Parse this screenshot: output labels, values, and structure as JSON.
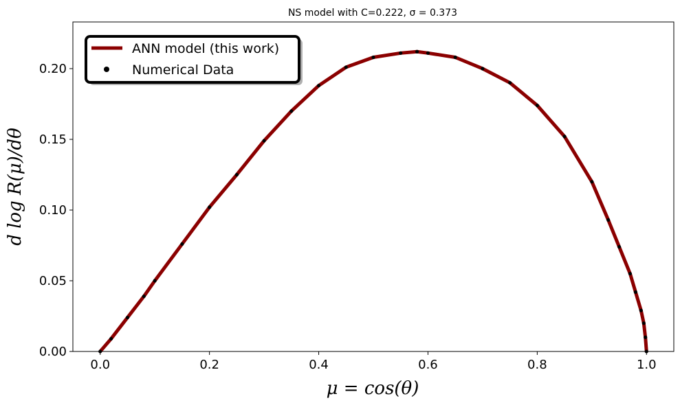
{
  "chart_data": {
    "type": "line",
    "title": "NS model with C=0.222, σ = 0.373",
    "xlabel": "μ = cos(θ)",
    "ylabel": "d log R(μ)/dθ",
    "xlim": [
      -0.05,
      1.05
    ],
    "ylim": [
      0.0,
      0.233
    ],
    "x_ticks": [
      0.0,
      0.2,
      0.4,
      0.6,
      0.8,
      1.0
    ],
    "x_tick_labels": [
      "0.0",
      "0.2",
      "0.4",
      "0.6",
      "0.8",
      "1.0"
    ],
    "y_ticks": [
      0.0,
      0.05,
      0.1,
      0.15,
      0.2
    ],
    "y_tick_labels": [
      "0.00",
      "0.05",
      "0.10",
      "0.15",
      "0.20"
    ],
    "grid": false,
    "legend_position": "top-left",
    "series": [
      {
        "name": "ANN model (this work)",
        "kind": "line",
        "color": "#8b0000",
        "x": [
          0.0,
          0.02,
          0.05,
          0.08,
          0.1,
          0.15,
          0.2,
          0.25,
          0.3,
          0.35,
          0.4,
          0.45,
          0.5,
          0.55,
          0.58,
          0.6,
          0.65,
          0.7,
          0.75,
          0.8,
          0.85,
          0.9,
          0.93,
          0.95,
          0.97,
          0.98,
          0.99,
          0.995,
          0.998,
          1.0
        ],
        "y": [
          0.0,
          0.009,
          0.024,
          0.039,
          0.05,
          0.076,
          0.102,
          0.125,
          0.149,
          0.17,
          0.188,
          0.201,
          0.208,
          0.211,
          0.212,
          0.211,
          0.208,
          0.2,
          0.19,
          0.174,
          0.152,
          0.12,
          0.093,
          0.074,
          0.055,
          0.042,
          0.029,
          0.02,
          0.01,
          0.0
        ]
      },
      {
        "name": "Numerical Data",
        "kind": "scatter",
        "color": "#000000",
        "x": [
          0.0,
          0.02,
          0.05,
          0.08,
          0.1,
          0.15,
          0.2,
          0.25,
          0.3,
          0.35,
          0.4,
          0.45,
          0.5,
          0.55,
          0.58,
          0.6,
          0.65,
          0.7,
          0.75,
          0.8,
          0.85,
          0.9,
          0.93,
          0.95,
          0.97,
          0.98,
          0.99,
          0.995,
          0.998,
          1.0
        ],
        "y": [
          0.0,
          0.009,
          0.024,
          0.039,
          0.05,
          0.076,
          0.102,
          0.125,
          0.149,
          0.17,
          0.188,
          0.201,
          0.208,
          0.211,
          0.212,
          0.211,
          0.208,
          0.2,
          0.19,
          0.174,
          0.152,
          0.12,
          0.093,
          0.074,
          0.055,
          0.042,
          0.029,
          0.02,
          0.01,
          0.0
        ]
      }
    ]
  }
}
